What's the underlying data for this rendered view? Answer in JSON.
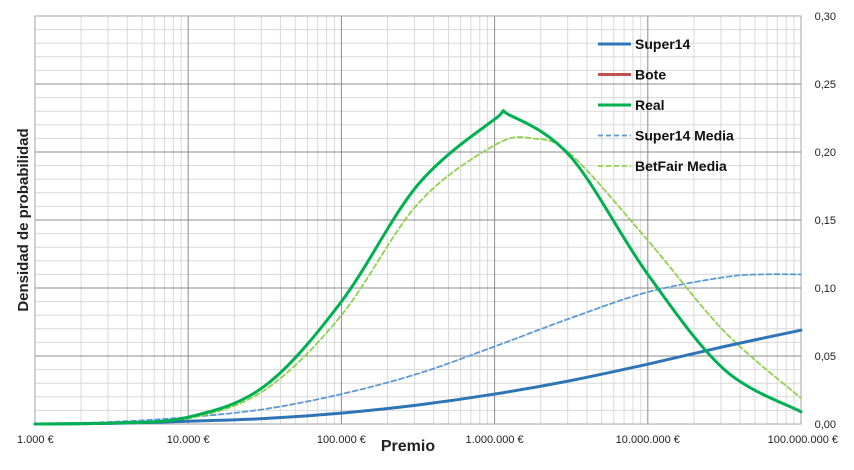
{
  "chart_data": {
    "type": "line",
    "xlabel": "Premio",
    "ylabel": "Densidad de probabilidad",
    "x_scale": "log",
    "xlim": [
      1000,
      100000000
    ],
    "ylim": [
      0,
      0.3
    ],
    "grid": true,
    "legend_position": "top-right",
    "x_tick_labels": [
      "1.000 €",
      "10.000 €",
      "100.000 €",
      "1.000.000 €",
      "10.000.000 €",
      "100.000.000 €"
    ],
    "x_tick_values": [
      1000,
      10000,
      100000,
      1000000,
      10000000,
      100000000
    ],
    "y_tick_labels": [
      "0,00",
      "0,05",
      "0,10",
      "0,15",
      "0,20",
      "0,25",
      "0,30"
    ],
    "y_tick_values": [
      0,
      0.05,
      0.1,
      0.15,
      0.2,
      0.25,
      0.3
    ],
    "series": [
      {
        "name": "Super14",
        "color": "#2e75b6",
        "dash": "solid",
        "x": [
          1000,
          3162,
          10000,
          31623,
          100000,
          316228,
          1000000,
          3162278,
          10000000,
          31622777,
          100000000
        ],
        "y": [
          0.0,
          0.0005,
          0.002,
          0.004,
          0.008,
          0.014,
          0.022,
          0.032,
          0.044,
          0.057,
          0.069
        ]
      },
      {
        "name": "Bote",
        "color": "#c0504d",
        "dash": "solid",
        "x": [],
        "y": []
      },
      {
        "name": "Real",
        "color": "#00b050",
        "dash": "solid",
        "x": [
          1000,
          3162,
          10000,
          31623,
          100000,
          316228,
          1000000,
          1258925,
          3162278,
          10000000,
          31622777,
          100000000
        ],
        "y": [
          0.0,
          0.0007,
          0.005,
          0.028,
          0.09,
          0.176,
          0.224,
          0.227,
          0.196,
          0.11,
          0.04,
          0.009
        ]
      },
      {
        "name": "Super14 Media",
        "color": "#5b9bd5",
        "dash": "dashed",
        "x": [
          1000,
          3162,
          10000,
          31623,
          100000,
          316228,
          1000000,
          3162278,
          10000000,
          31622777,
          56234133,
          100000000
        ],
        "y": [
          0.0,
          0.0015,
          0.005,
          0.011,
          0.022,
          0.037,
          0.057,
          0.078,
          0.097,
          0.108,
          0.11,
          0.11
        ]
      },
      {
        "name": "BetFair Media",
        "color": "#92d050",
        "dash": "dashed",
        "x": [
          1000,
          3162,
          10000,
          31623,
          100000,
          316228,
          1000000,
          1778279,
          3162278,
          10000000,
          31622777,
          100000000
        ],
        "y": [
          0.0,
          0.0006,
          0.004,
          0.025,
          0.08,
          0.162,
          0.205,
          0.21,
          0.198,
          0.135,
          0.068,
          0.019
        ]
      }
    ]
  }
}
